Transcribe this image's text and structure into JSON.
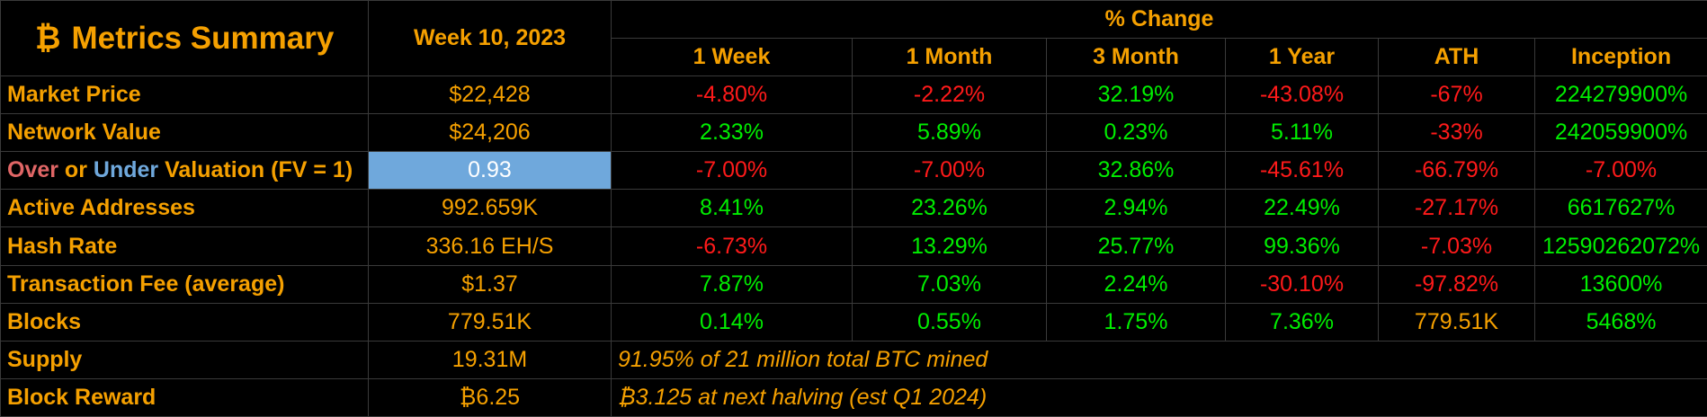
{
  "header": {
    "btc_symbol": "₿",
    "title": "Metrics Summary",
    "week": "Week 10, 2023",
    "pct_change": "% Change",
    "columns": [
      "1 Week",
      "1 Month",
      "3 Month",
      "1 Year",
      "ATH",
      "Inception"
    ]
  },
  "colors": {
    "label": "#f5a000",
    "negative": "#ff1a1a",
    "positive": "#00ee00",
    "highlight": "#6fa8dc",
    "over_word": "#e06666",
    "under_word": "#6fa8dc"
  },
  "rows": [
    {
      "label": "Market Price",
      "value": "$22,428",
      "changes": [
        "-4.80%",
        "-2.22%",
        "32.19%",
        "-43.08%",
        "-67%",
        "224279900%"
      ],
      "signs": [
        "neg",
        "neg",
        "pos",
        "neg",
        "neg",
        "pos"
      ]
    },
    {
      "label": "Network Value",
      "value": "$24,206",
      "changes": [
        "2.33%",
        "5.89%",
        "0.23%",
        "5.11%",
        "-33%",
        "242059900%"
      ],
      "signs": [
        "pos",
        "pos",
        "pos",
        "pos",
        "neg",
        "pos"
      ]
    },
    {
      "label_parts": {
        "over": "Over",
        "or": " or ",
        "under": "Under",
        "rest": " Valuation (FV = 1)"
      },
      "value": "0.93",
      "changes": [
        "-7.00%",
        "-7.00%",
        "32.86%",
        "-45.61%",
        "-66.79%",
        "-7.00%"
      ],
      "signs": [
        "neg",
        "neg",
        "pos",
        "neg",
        "neg",
        "neg"
      ]
    },
    {
      "label": "Active Addresses",
      "value": "992.659K",
      "changes": [
        "8.41%",
        "23.26%",
        "2.94%",
        "22.49%",
        "-27.17%",
        "6617627%"
      ],
      "signs": [
        "pos",
        "pos",
        "pos",
        "pos",
        "neg",
        "pos"
      ]
    },
    {
      "label": "Hash Rate",
      "value": "336.16 EH/S",
      "changes": [
        "-6.73%",
        "13.29%",
        "25.77%",
        "99.36%",
        "-7.03%",
        "12590262072%"
      ],
      "signs": [
        "neg",
        "pos",
        "pos",
        "pos",
        "neg",
        "pos"
      ]
    },
    {
      "label": "Transaction Fee (average)",
      "value": "$1.37",
      "changes": [
        "7.87%",
        "7.03%",
        "2.24%",
        "-30.10%",
        "-97.82%",
        "13600%"
      ],
      "signs": [
        "pos",
        "pos",
        "pos",
        "neg",
        "neg",
        "pos"
      ]
    },
    {
      "label": "Blocks",
      "value": "779.51K",
      "changes": [
        "0.14%",
        "0.55%",
        "1.75%",
        "7.36%",
        "779.51K",
        "5468%"
      ],
      "signs": [
        "pos",
        "pos",
        "pos",
        "pos",
        "plain",
        "pos"
      ]
    },
    {
      "label": "Supply",
      "value": "19.31M",
      "note": "91.95% of 21 million total BTC mined"
    },
    {
      "label": "Block Reward",
      "value": "₿6.25",
      "note": "₿3.125 at next halving (est Q1 2024)"
    }
  ]
}
